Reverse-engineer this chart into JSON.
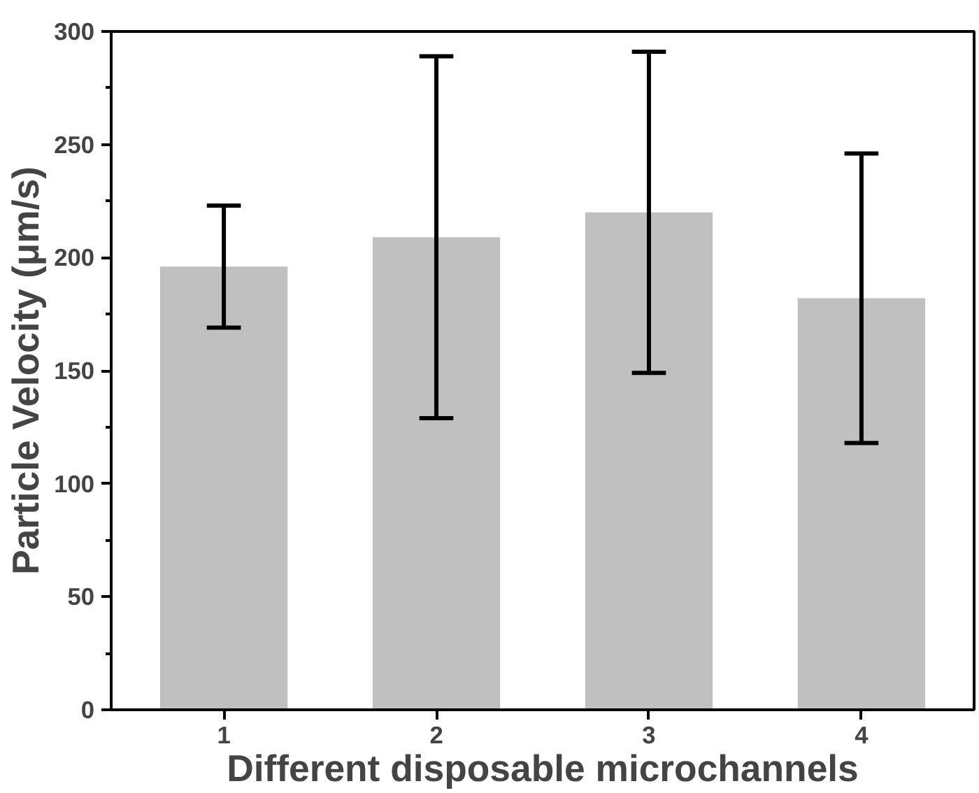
{
  "chart_data": {
    "type": "bar",
    "xlabel": "Different disposable microchannels",
    "ylabel": "Particle Velocity (μm/s)",
    "categories": [
      "1",
      "2",
      "3",
      "4"
    ],
    "values": [
      196,
      209,
      220,
      182
    ],
    "errors": [
      27,
      80,
      71,
      64
    ],
    "color": "#c0c0c0",
    "ylim": [
      0,
      300
    ],
    "yticks": [
      0,
      50,
      100,
      150,
      200,
      250,
      300
    ],
    "grid": false
  }
}
